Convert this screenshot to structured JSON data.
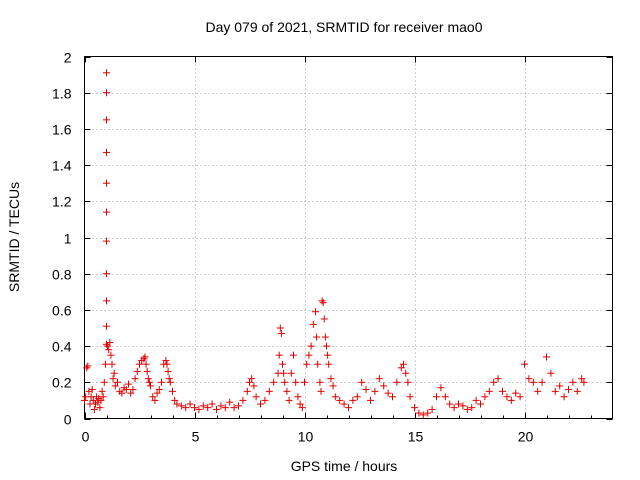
{
  "chart_data": {
    "type": "scatter",
    "title": "Day 079 of 2021, SRMTID for receiver mao0",
    "xlabel": "GPS time / hours",
    "ylabel": "SRMTID / TECUs",
    "xlim": [
      0,
      24
    ],
    "ylim": [
      0,
      2
    ],
    "xticks": [
      0,
      5,
      10,
      15,
      20
    ],
    "xtick_labels": [
      "0",
      "5",
      "10",
      "15",
      "20"
    ],
    "yticks": [
      0,
      0.2,
      0.4,
      0.6,
      0.8,
      1,
      1.2,
      1.4,
      1.6,
      1.8,
      2
    ],
    "ytick_labels": [
      "0",
      "0.2",
      "0.4",
      "0.6",
      "0.8",
      "1",
      "1.2",
      "1.4",
      "1.6",
      "1.8",
      "2"
    ],
    "grid": true,
    "marker": "+",
    "marker_color": "#e00000",
    "series": [
      {
        "name": "SRMTID",
        "x": [
          0.0,
          0.05,
          0.1,
          0.15,
          0.2,
          0.25,
          0.3,
          0.35,
          0.4,
          0.45,
          0.5,
          0.55,
          0.6,
          0.65,
          0.7,
          0.75,
          0.8,
          0.85,
          0.9,
          0.95,
          1.0,
          1.0,
          1.0,
          1.0,
          1.0,
          1.0,
          1.0,
          1.0,
          1.0,
          1.0,
          1.0,
          1.05,
          1.1,
          1.15,
          1.2,
          1.25,
          1.3,
          1.35,
          1.4,
          1.5,
          1.6,
          1.7,
          1.8,
          1.9,
          2.0,
          2.1,
          2.2,
          2.3,
          2.4,
          2.5,
          2.6,
          2.7,
          2.75,
          2.8,
          2.85,
          2.9,
          2.95,
          3.0,
          3.1,
          3.2,
          3.3,
          3.4,
          3.5,
          3.6,
          3.7,
          3.75,
          3.8,
          3.85,
          3.9,
          4.0,
          4.1,
          4.2,
          4.4,
          4.6,
          4.8,
          5.0,
          5.2,
          5.4,
          5.6,
          5.8,
          6.0,
          6.2,
          6.4,
          6.6,
          6.8,
          7.0,
          7.2,
          7.4,
          7.5,
          7.6,
          7.7,
          7.8,
          8.0,
          8.2,
          8.4,
          8.6,
          8.8,
          8.85,
          8.9,
          8.95,
          9.0,
          9.05,
          9.1,
          9.2,
          9.3,
          9.4,
          9.5,
          9.6,
          9.7,
          9.8,
          9.9,
          10.0,
          10.1,
          10.2,
          10.3,
          10.4,
          10.5,
          10.55,
          10.6,
          10.7,
          10.75,
          10.8,
          10.85,
          10.9,
          10.95,
          11.0,
          11.05,
          11.1,
          11.2,
          11.3,
          11.4,
          11.6,
          11.8,
          12.0,
          12.2,
          12.4,
          12.6,
          12.8,
          13.0,
          13.2,
          13.4,
          13.6,
          13.8,
          14.0,
          14.2,
          14.4,
          14.5,
          14.6,
          14.7,
          14.8,
          15.0,
          15.2,
          15.4,
          15.6,
          15.8,
          16.0,
          16.2,
          16.4,
          16.6,
          16.8,
          17.0,
          17.2,
          17.4,
          17.6,
          17.8,
          18.0,
          18.2,
          18.4,
          18.6,
          18.8,
          19.0,
          19.2,
          19.4,
          19.6,
          19.8,
          20.0,
          20.2,
          20.4,
          20.6,
          20.8,
          21.0,
          21.2,
          21.4,
          21.6,
          21.8,
          22.0,
          22.2,
          22.4,
          22.6,
          22.7
        ],
        "y": [
          0.1,
          0.12,
          0.28,
          0.29,
          0.15,
          0.08,
          0.12,
          0.16,
          0.1,
          0.05,
          0.08,
          0.12,
          0.09,
          0.11,
          0.06,
          0.1,
          0.15,
          0.12,
          0.2,
          0.3,
          1.91,
          1.8,
          1.65,
          1.47,
          1.3,
          1.14,
          0.98,
          0.8,
          0.65,
          0.51,
          0.41,
          0.4,
          0.38,
          0.42,
          0.35,
          0.3,
          0.22,
          0.25,
          0.18,
          0.2,
          0.15,
          0.14,
          0.17,
          0.16,
          0.19,
          0.14,
          0.16,
          0.22,
          0.26,
          0.3,
          0.32,
          0.33,
          0.34,
          0.3,
          0.26,
          0.22,
          0.2,
          0.18,
          0.12,
          0.1,
          0.14,
          0.16,
          0.2,
          0.3,
          0.32,
          0.3,
          0.26,
          0.22,
          0.2,
          0.15,
          0.1,
          0.08,
          0.07,
          0.06,
          0.08,
          0.06,
          0.05,
          0.07,
          0.06,
          0.08,
          0.05,
          0.07,
          0.06,
          0.09,
          0.06,
          0.07,
          0.1,
          0.15,
          0.2,
          0.22,
          0.18,
          0.12,
          0.08,
          0.1,
          0.15,
          0.2,
          0.25,
          0.35,
          0.5,
          0.47,
          0.3,
          0.25,
          0.2,
          0.15,
          0.1,
          0.25,
          0.35,
          0.2,
          0.12,
          0.08,
          0.06,
          0.2,
          0.3,
          0.35,
          0.4,
          0.52,
          0.59,
          0.45,
          0.3,
          0.2,
          0.15,
          0.65,
          0.64,
          0.55,
          0.45,
          0.4,
          0.35,
          0.3,
          0.22,
          0.18,
          0.12,
          0.1,
          0.08,
          0.06,
          0.1,
          0.12,
          0.2,
          0.16,
          0.1,
          0.15,
          0.22,
          0.18,
          0.14,
          0.12,
          0.2,
          0.28,
          0.3,
          0.25,
          0.2,
          0.12,
          0.06,
          0.03,
          0.02,
          0.03,
          0.05,
          0.12,
          0.17,
          0.12,
          0.08,
          0.06,
          0.08,
          0.07,
          0.05,
          0.06,
          0.1,
          0.08,
          0.12,
          0.15,
          0.2,
          0.22,
          0.15,
          0.12,
          0.1,
          0.14,
          0.12,
          0.3,
          0.22,
          0.2,
          0.15,
          0.2,
          0.34,
          0.25,
          0.15,
          0.18,
          0.12,
          0.16,
          0.2,
          0.15,
          0.22,
          0.2
        ]
      }
    ]
  }
}
